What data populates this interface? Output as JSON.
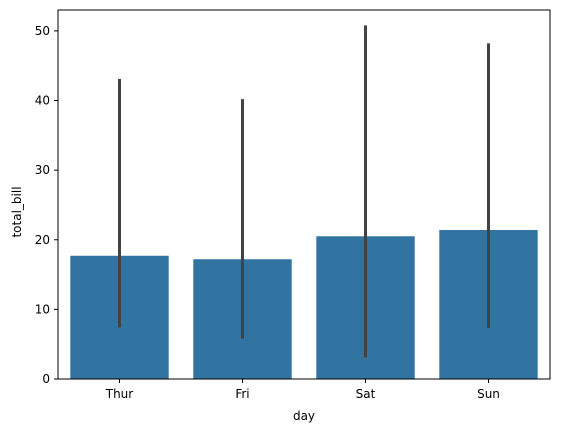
{
  "chart_data": {
    "type": "bar",
    "title": "",
    "xlabel": "day",
    "ylabel": "total_bill",
    "categories": [
      "Thur",
      "Fri",
      "Sat",
      "Sun"
    ],
    "values": [
      17.7,
      17.2,
      20.5,
      21.4
    ],
    "error_bars": [
      {
        "low": 7.4,
        "high": 43.1
      },
      {
        "low": 5.8,
        "high": 40.2
      },
      {
        "low": 3.1,
        "high": 50.8
      },
      {
        "low": 7.3,
        "high": 48.2
      }
    ],
    "ylim": [
      0,
      53
    ],
    "yticks": [
      0,
      10,
      20,
      30,
      40,
      50
    ],
    "grid": false,
    "colors": {
      "bar": "#3274a1",
      "error_bar": "#424242",
      "axis": "#000000"
    }
  }
}
